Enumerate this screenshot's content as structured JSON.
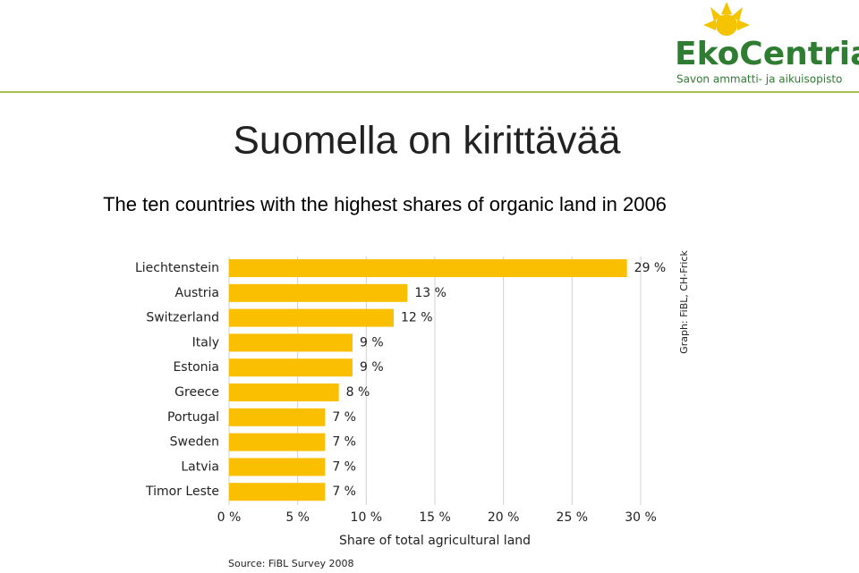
{
  "logo": {
    "name": "EkoCentria",
    "tagline": "Savon ammatti- ja aikuisopisto"
  },
  "chart_data": {
    "type": "bar",
    "orientation": "horizontal",
    "title": "Suomella on kirittävää",
    "subtitle": "The ten countries with the highest shares of organic land in 2006",
    "categories": [
      "Liechtenstein",
      "Austria",
      "Switzerland",
      "Italy",
      "Estonia",
      "Greece",
      "Portugal",
      "Sweden",
      "Latvia",
      "Timor Leste"
    ],
    "values": [
      29,
      13,
      12,
      9,
      9,
      8,
      7,
      7,
      7,
      7
    ],
    "value_labels": [
      "29 %",
      "13 %",
      "12 %",
      "9 %",
      "9 %",
      "8 %",
      "7 %",
      "7 %",
      "7 %",
      "7 %"
    ],
    "color": "#f9bf00",
    "xlim": [
      0,
      30
    ],
    "xticks": [
      {
        "value": 0,
        "label": "0 %"
      },
      {
        "value": 5,
        "label": "5 %"
      },
      {
        "value": 10,
        "label": "10 %"
      },
      {
        "value": 15,
        "label": "15 %"
      },
      {
        "value": 20,
        "label": "20 %"
      },
      {
        "value": 25,
        "label": "25 %"
      },
      {
        "value": 30,
        "label": "30 %"
      }
    ],
    "xlabel": "Share of total agricultural land",
    "grid": true,
    "source": "Source: FiBL Survey 2008",
    "credit": "Graph: FiBL, CH-Frick"
  }
}
